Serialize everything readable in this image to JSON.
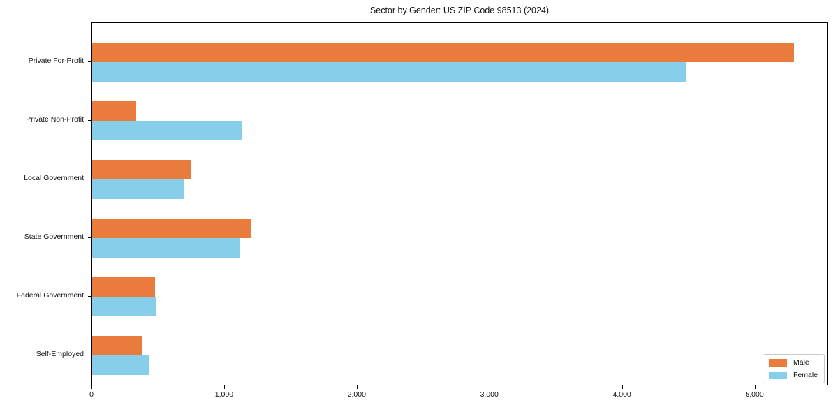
{
  "title": "Sector by Gender: US ZIP Code 98513 (2024)",
  "colors": {
    "male": "#E97B3C",
    "female": "#87CEEB",
    "spine": "#000000",
    "legend_border": "#C9C9C9",
    "text": "#111111",
    "background": "#FFFFFF"
  },
  "chart_data": {
    "type": "bar",
    "orientation": "horizontal",
    "title": "Sector by Gender: US ZIP Code 98513 (2024)",
    "categories": [
      "Private For-Profit",
      "Private Non-Profit",
      "Local Government",
      "State Government",
      "Federal Government",
      "Self-Employed"
    ],
    "series": [
      {
        "name": "Male",
        "color": "#E97B3C",
        "values": [
          5290,
          330,
          745,
          1200,
          475,
          380
        ]
      },
      {
        "name": "Female",
        "color": "#87CEEB",
        "values": [
          4480,
          1130,
          695,
          1110,
          480,
          425
        ]
      }
    ],
    "xlabel": "",
    "ylabel": "",
    "xlim": [
      0,
      5550
    ],
    "xticks": [
      0,
      1000,
      2000,
      3000,
      4000,
      5000
    ],
    "xtick_labels": [
      "0",
      "1,000",
      "2,000",
      "3,000",
      "4,000",
      "5,000"
    ],
    "grid": false,
    "legend": {
      "position": "lower right",
      "entries": [
        {
          "label": "Male",
          "color": "#E97B3C"
        },
        {
          "label": "Female",
          "color": "#87CEEB"
        }
      ]
    }
  }
}
